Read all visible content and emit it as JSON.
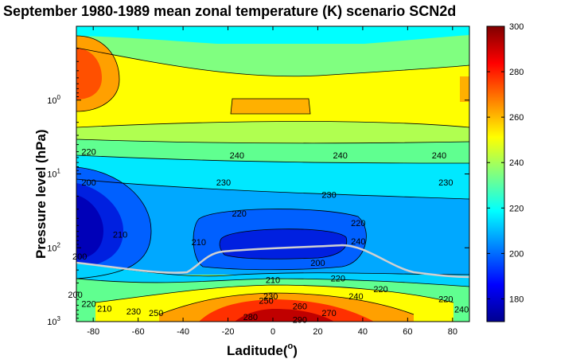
{
  "chart_data": {
    "type": "heatmap",
    "subtype": "filled-contour",
    "title": "September  1980-1989 mean zonal temperature (K) scenario SCN2d",
    "xlabel": "Laditude(o)",
    "xlabel_text": "Laditude(",
    "xlabel_sup": "o",
    "xlabel_close": ")",
    "ylabel": "Pressure level (hPa)",
    "y_scale": "log",
    "y_reversed": true,
    "xlim": [
      -87.5,
      87.5
    ],
    "ylim_hpa": [
      1000,
      0.1
    ],
    "x_ticks": [
      "-80",
      "-60",
      "-40",
      "-20",
      "0",
      "20",
      "40",
      "60",
      "80"
    ],
    "y_ticks": [
      {
        "base": "10",
        "exp": "0"
      },
      {
        "base": "10",
        "exp": "1"
      },
      {
        "base": "10",
        "exp": "2"
      },
      {
        "base": "10",
        "exp": "3"
      }
    ],
    "colorbar": {
      "min": 170,
      "max": 300,
      "ticks": [
        "180",
        "200",
        "220",
        "240",
        "260",
        "280",
        "300"
      ],
      "colormap": "jet",
      "colors": [
        "#00008f",
        "#0000ff",
        "#0080ff",
        "#00ffff",
        "#80ff80",
        "#ffff00",
        "#ff8000",
        "#ff0000",
        "#800000"
      ]
    },
    "contour_levels_K": [
      180,
      190,
      200,
      210,
      220,
      230,
      240,
      250,
      260,
      270,
      280,
      290
    ],
    "contour_labels": [
      "220",
      "240",
      "240",
      "240",
      "200",
      "230",
      "230",
      "230",
      "220",
      "220",
      "210",
      "210",
      "240",
      "200",
      "200",
      "210",
      "220",
      "200",
      "230",
      "240",
      "220",
      "210",
      "250",
      "260",
      "270",
      "220",
      "220",
      "240",
      "280",
      "290",
      "250",
      "230"
    ],
    "tropopause_line_color": "#d0d0d0"
  }
}
